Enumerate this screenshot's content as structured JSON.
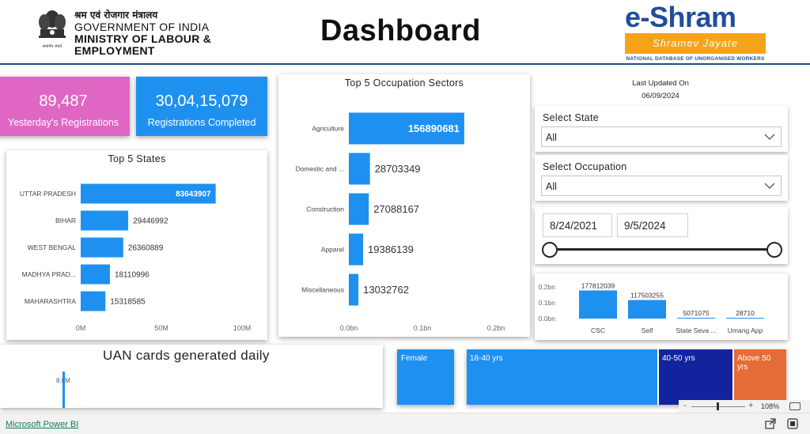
{
  "header": {
    "ministry_hindi": "श्रम एवं रोजगार मंत्रालय",
    "government": "GOVERNMENT OF INDIA",
    "ministry_line1": "MINISTRY OF LABOUR &",
    "ministry_line2": "EMPLOYMENT",
    "emblem_motto": "सत्यमेव जयते",
    "title": "Dashboard",
    "logo_brand": "e-Shram",
    "logo_tagline": "Shramev Jayate",
    "logo_subtitle": "NATIONAL DATABASE OF UNORGANISED WORKERS"
  },
  "kpis": {
    "yesterday": {
      "value": "89,487",
      "label": "Yesterday's Registrations",
      "color": "#e066c4"
    },
    "completed": {
      "value": "30,04,15,079",
      "label": "Registrations Completed",
      "color": "#1e90f0"
    }
  },
  "filters": {
    "last_updated_label": "Last Updated On",
    "last_updated_date": "06/09/2024",
    "state_label": "Select State",
    "state_value": "All",
    "occupation_label": "Select Occupation",
    "occupation_value": "All",
    "date_from": "8/24/2021",
    "date_to": "9/5/2024",
    "range_start": 0,
    "range_end": 1
  },
  "uan": {
    "title": "UAN cards generated daily",
    "value_label": "8.0M"
  },
  "demographics": {
    "gender": [
      {
        "label": "Female"
      }
    ],
    "age": [
      {
        "label": "18-40 yrs",
        "color": "#1e90f0"
      },
      {
        "label": "40-50 yrs",
        "color": "#12239e"
      },
      {
        "label": "Above 50 yrs",
        "color": "#e66c37"
      }
    ]
  },
  "statusbar": {
    "app_link": "Microsoft Power BI",
    "zoom_level": "108%",
    "zoom_minus": "-",
    "zoom_plus": "+"
  },
  "chart_data": [
    {
      "type": "bar",
      "orientation": "horizontal",
      "title": "Top 5 States",
      "categories": [
        "UTTAR PRADESH",
        "BIHAR",
        "WEST BENGAL",
        "MADHYA PRAD...",
        "MAHARASHTRA"
      ],
      "values": [
        83643907,
        29446992,
        26360889,
        18110996,
        15318585
      ],
      "value_labels": [
        "83643907",
        "29446992",
        "26360889",
        "18110996",
        "15318585"
      ],
      "xlim": [
        0,
        100000000
      ],
      "x_ticks": [
        0,
        50000000,
        100000000
      ],
      "x_tick_labels": [
        "0M",
        "50M",
        "100M"
      ],
      "color": "#1e90f0",
      "grid": false
    },
    {
      "type": "bar",
      "orientation": "horizontal",
      "title": "Top 5 Occupation Sectors",
      "categories": [
        "Agriculture",
        "Domestic and ...",
        "Construction",
        "Apparel",
        "Miscellaneous"
      ],
      "values": [
        156890681,
        28703349,
        27088167,
        19386139,
        13032762
      ],
      "value_labels": [
        "156890681",
        "28703349",
        "27088167",
        "19386139",
        "13032762"
      ],
      "xlim": [
        0,
        200000000
      ],
      "x_ticks": [
        0,
        100000000,
        200000000
      ],
      "x_tick_labels": [
        "0.0bn",
        "0.1bn",
        "0.2bn"
      ],
      "color": "#1e90f0",
      "grid": false
    },
    {
      "type": "bar",
      "orientation": "vertical",
      "categories": [
        "CSC",
        "Self",
        "State Seva ...",
        "Umang App"
      ],
      "values": [
        177812039,
        117503255,
        5071075,
        28710
      ],
      "value_labels": [
        "177812039",
        "117503255",
        "5071075",
        "28710"
      ],
      "ylim": [
        0,
        200000000
      ],
      "y_ticks": [
        0,
        100000000,
        200000000
      ],
      "y_tick_labels": [
        "0.0bn",
        "0.1bn",
        "0.2bn"
      ],
      "color": "#1e90f0",
      "grid": false
    }
  ]
}
